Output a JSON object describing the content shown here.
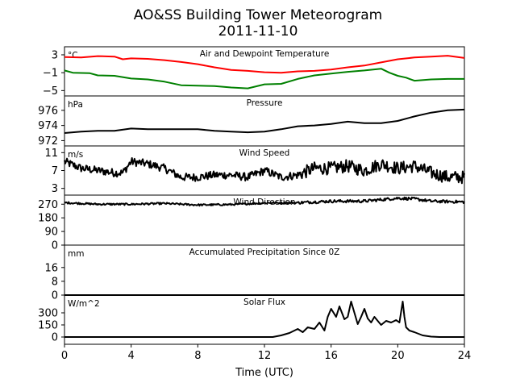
{
  "chart_data": {
    "type": "line",
    "title": "AO&SS Building Tower Meteorogram",
    "subtitle": "2011-11-10",
    "xlabel": "Time (UTC)",
    "xlim": [
      0,
      24
    ],
    "xticks": [
      "0",
      "4",
      "8",
      "12",
      "16",
      "20",
      "24"
    ],
    "panels": [
      {
        "title": "Air and Dewpoint Temperature",
        "unit": "°C",
        "ylim": [
          -6.2,
          4.8
        ],
        "yticks": [
          "3",
          "−1",
          "−5"
        ],
        "ytick_values": [
          3,
          -1,
          -5
        ],
        "series": [
          {
            "color": "#ff0000",
            "x": [
              0,
              1,
              2,
              3,
              3.5,
              4,
              5,
              6,
              7,
              8,
              9,
              10,
              11,
              12,
              13,
              14,
              15,
              16,
              17,
              18,
              19,
              20,
              21,
              22,
              23,
              24
            ],
            "y": [
              2.5,
              2.4,
              2.7,
              2.6,
              2.0,
              2.2,
              2.1,
              1.8,
              1.4,
              0.9,
              0.2,
              -0.4,
              -0.6,
              -0.9,
              -1.0,
              -0.7,
              -0.6,
              -0.3,
              0.2,
              0.6,
              1.3,
              2.0,
              2.4,
              2.6,
              2.8,
              2.3
            ]
          },
          {
            "color": "#008000",
            "x": [
              0,
              0.5,
              1.5,
              2,
              3,
              4,
              5,
              6,
              7,
              8,
              9,
              10,
              11,
              12,
              13,
              14,
              15,
              16,
              17,
              18,
              19,
              19.5,
              20,
              20.5,
              21,
              22,
              23,
              24
            ],
            "y": [
              -0.5,
              -1.0,
              -1.1,
              -1.6,
              -1.7,
              -2.3,
              -2.5,
              -3.0,
              -3.8,
              -3.9,
              -4.0,
              -4.3,
              -4.5,
              -3.6,
              -3.5,
              -2.4,
              -1.6,
              -1.2,
              -0.8,
              -0.5,
              -0.1,
              -1.0,
              -1.7,
              -2.1,
              -2.8,
              -2.5,
              -2.4,
              -2.4
            ]
          }
        ]
      },
      {
        "title": "Pressure",
        "unit": "hPa",
        "ylim": [
          971.3,
          977.9
        ],
        "yticks": [
          "976",
          "974",
          "972"
        ],
        "ytick_values": [
          976,
          974,
          972
        ],
        "series": [
          {
            "color": "#000000",
            "x": [
              0,
              1,
              2,
              3,
              4,
              5,
              6,
              7,
              8,
              9,
              10,
              11,
              12,
              13,
              14,
              15,
              16,
              17,
              18,
              19,
              20,
              21,
              22,
              23,
              24
            ],
            "y": [
              973.0,
              973.2,
              973.3,
              973.3,
              973.6,
              973.5,
              973.5,
              973.5,
              973.5,
              973.3,
              973.2,
              973.1,
              973.2,
              973.5,
              973.9,
              974.0,
              974.2,
              974.5,
              974.3,
              974.3,
              974.6,
              975.2,
              975.7,
              976.0,
              976.1
            ]
          }
        ]
      },
      {
        "title": "Wind Speed",
        "unit": "m/s",
        "ylim": [
          1.5,
          12.5
        ],
        "yticks": [
          "11",
          "7",
          "3"
        ],
        "ytick_values": [
          11,
          7,
          3
        ],
        "series": [
          {
            "color": "#000000",
            "x": [
              0,
              1,
              2,
              3,
              3.5,
              4,
              5,
              6,
              7,
              8,
              9,
              10,
              11,
              12,
              13,
              14,
              15,
              16,
              17,
              18,
              19,
              20,
              21,
              22,
              23,
              24
            ],
            "y": [
              9.0,
              7.5,
              7.0,
              6.5,
              6.5,
              9.0,
              8.5,
              7.5,
              5.5,
              5.5,
              6.0,
              6.0,
              5.5,
              7.0,
              5.5,
              6.0,
              7.5,
              7.5,
              8.0,
              7.0,
              8.5,
              7.5,
              8.0,
              6.5,
              5.5,
              5.5
            ]
          }
        ],
        "noise": 0.9
      },
      {
        "title": "Wind Direction",
        "unit": "",
        "ylim": [
          0,
          330
        ],
        "yticks": [
          "270",
          "180",
          "90",
          "0"
        ],
        "ytick_values": [
          270,
          180,
          90,
          0
        ],
        "series": [
          {
            "color": "#000000",
            "x": [
              0,
              2,
              4,
              6,
              8,
              10,
              12,
              14,
              16,
              18,
              20,
              21,
              22,
              24
            ],
            "y": [
              280,
              270,
              270,
              275,
              265,
              268,
              278,
              280,
              290,
              290,
              310,
              305,
              290,
              285
            ]
          }
        ],
        "noise": 6
      },
      {
        "title": "Accumulated Precipitation Since 0Z",
        "unit": "mm",
        "ylim": [
          0,
          29
        ],
        "yticks": [
          "16",
          "8",
          "0"
        ],
        "ytick_values": [
          16,
          8,
          0
        ],
        "series": [
          {
            "color": "#000000",
            "x": [
              0,
              24
            ],
            "y": [
              0,
              0
            ]
          }
        ]
      },
      {
        "title": "Solar Flux",
        "unit": "W/m^2",
        "ylim": [
          -90,
          520
        ],
        "yticks": [
          "300",
          "150",
          "0"
        ],
        "ytick_values": [
          300,
          150,
          0
        ],
        "series": [
          {
            "color": "#000000",
            "x": [
              0,
              12.5,
              13,
              13.5,
              14,
              14.3,
              14.6,
              15,
              15.3,
              15.6,
              15.8,
              16,
              16.3,
              16.5,
              16.8,
              17,
              17.2,
              17.4,
              17.6,
              17.8,
              18,
              18.2,
              18.4,
              18.6,
              18.8,
              19,
              19.3,
              19.6,
              19.9,
              20.1,
              20.3,
              20.4,
              20.5,
              20.7,
              21,
              21.5,
              22,
              22.5,
              23,
              24
            ],
            "y": [
              0,
              0,
              20,
              50,
              100,
              60,
              120,
              100,
              180,
              80,
              250,
              350,
              250,
              380,
              220,
              250,
              440,
              300,
              160,
              250,
              350,
              230,
              180,
              250,
              200,
              150,
              200,
              180,
              210,
              180,
              440,
              250,
              120,
              80,
              60,
              20,
              5,
              0,
              0,
              0
            ]
          }
        ]
      }
    ]
  }
}
